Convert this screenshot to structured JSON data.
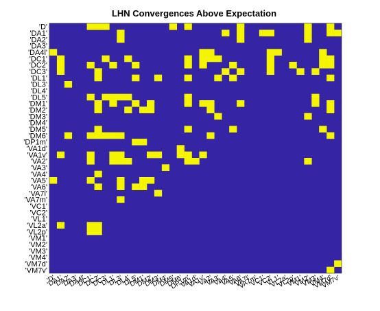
{
  "chart_data": {
    "type": "heatmap",
    "title": "LHN Convergences Above Expectation",
    "labels": [
      "'D'",
      "'DA1'",
      "'DA2'",
      "'DA3'",
      "'DA4l'",
      "'DC1'",
      "'DC2'",
      "'DC3'",
      "'DL1'",
      "'DL3'",
      "'DL4'",
      "'DL5'",
      "'DM1'",
      "'DM2'",
      "'DM3'",
      "'DM4'",
      "'DM5'",
      "'DM6'",
      "'DP1m'",
      "'VA1d'",
      "'VA1v'",
      "'VA2'",
      "'VA3'",
      "'VA4'",
      "'VA5'",
      "'VA6'",
      "'VA7l'",
      "'VA7m'",
      "'VC1'",
      "'VC2'",
      "'VL1'",
      "'VL2a'",
      "'VL2p'",
      "'VM1'",
      "'VM2'",
      "'VM3'",
      "'VM4'",
      "'VM7d'",
      "'VM7v'"
    ],
    "colors": {
      "background": "#3525a5",
      "cell": "#f5f500",
      "axes_fill": "#3525a5"
    },
    "rows": [
      "000001110000000010100000010000000010010",
      "000000000100000000000001010011000010011",
      "000000000100000000000000010000000010000",
      "000000000000000000000000000000000000000",
      "100000000000000000001100000001100000100",
      "010000010010000000101110000001000000110",
      "010001001001000000101000100001001000110",
      "010000100000000000000001010001000101000",
      "000000100001001000100010100000000000010",
      "001000000000000000000000000000000000000",
      "000000000000000000000000000000000000000",
      "000001011110000000100000000000000001000",
      "000000101001010000101100010000000001010",
      "000000100010110000000100000000000000010",
      "000000000000000000000010000000000010000",
      "000000000000000000000000000000000000000",
      "000000100000000000100000100000000000100",
      "001001111100000000000100000000000000010",
      "000000000001100000000000000000000000000",
      "000000000000000001000000000000000000000",
      "010001001100011001101000000000000000000",
      "000001001110000000110000000000000010000",
      "000000000000000100000000000000000000000",
      "000000100000000000000000000000000000000",
      "100001000100110000000000000000000000000",
      "000000100101100000000000000000000000000",
      "000000000000001000000000000000000000000",
      "000000000100000000000000000000000000000",
      "000000000000000000000000000000000000000",
      "000000000000000000000000000000000000000",
      "000000000000000000000000000000000000000",
      "010001100000000000000000000000000000000",
      "000001100000000000000000000000000000000",
      "000000000000000000000000000000000000000",
      "000000000000000000000000000000000000000",
      "000000000000000000000000000000000000000",
      "000000000000000000000000000000000000000",
      "000000000000000000000000000000000000001",
      "000000000000000000000000000000000000010"
    ]
  }
}
